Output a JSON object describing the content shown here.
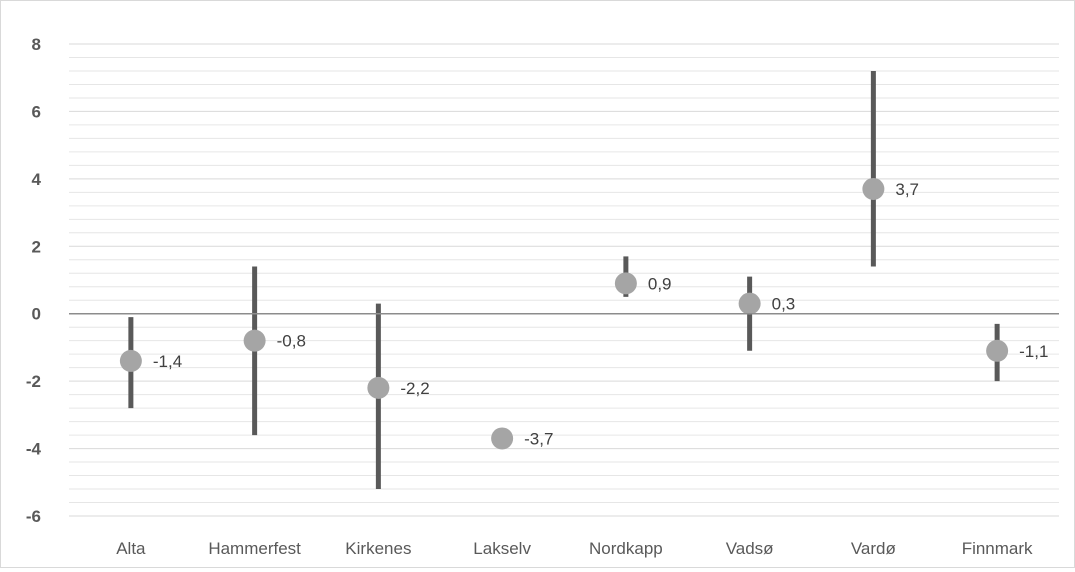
{
  "chart_data": {
    "type": "scatter",
    "title": "",
    "xlabel": "",
    "ylabel": "",
    "ylim": [
      -6,
      8
    ],
    "y_major_ticks": [
      -6,
      -4,
      -2,
      0,
      2,
      4,
      6,
      8
    ],
    "y_tick_labels": [
      "-6",
      "-4",
      "-2",
      "0",
      "2",
      "4",
      "6",
      "8"
    ],
    "grid": "major and minor horizontal gridlines",
    "legend": "none",
    "categories": [
      "Alta",
      "Hammerfest",
      "Kirkenes",
      "Lakselv",
      "Nordkapp",
      "Vadsø",
      "Vardø",
      "Finnmark"
    ],
    "values": [
      -1.4,
      -0.8,
      -2.2,
      -3.7,
      0.9,
      0.3,
      3.7,
      -1.1
    ],
    "value_labels": [
      "-1,4",
      "-0,8",
      "-2,2",
      "-3,7",
      "0,9",
      "0,3",
      "3,7",
      "-1,1"
    ],
    "ranges": [
      {
        "low": -2.8,
        "high": -0.1
      },
      {
        "low": -3.6,
        "high": 1.4
      },
      {
        "low": -5.2,
        "high": 0.3
      },
      null,
      {
        "low": 0.5,
        "high": 1.7
      },
      {
        "low": -1.1,
        "high": 1.1
      },
      {
        "low": 1.4,
        "high": 7.2
      },
      {
        "low": -2.0,
        "high": -0.3
      }
    ],
    "colors": {
      "marker": "#a5a5a5",
      "range_bar": "#595959",
      "zero_line": "#8c8c8c",
      "grid": "#e6e6e6"
    }
  }
}
